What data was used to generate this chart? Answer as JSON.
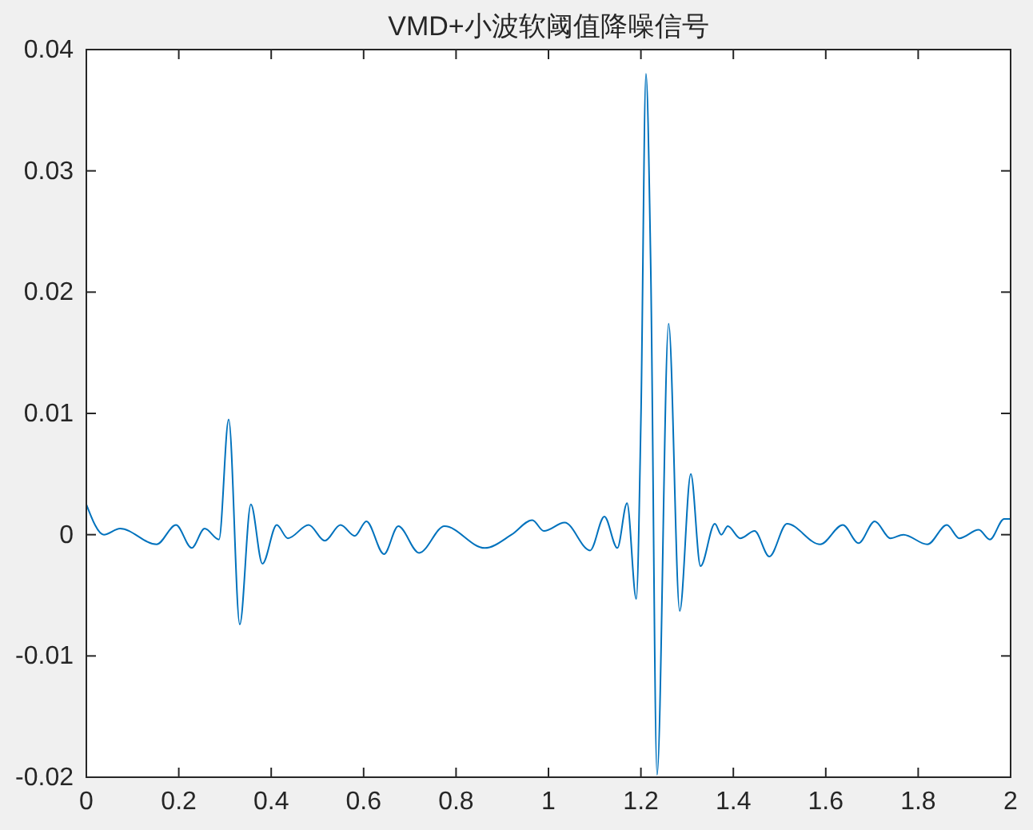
{
  "chart_data": {
    "type": "line",
    "title": "VMD+小波软阈值降噪信号",
    "x": [
      0,
      0.038,
      0.073,
      0.152,
      0.194,
      0.228,
      0.256,
      0.287,
      0.308,
      0.332,
      0.356,
      0.381,
      0.412,
      0.436,
      0.481,
      0.516,
      0.55,
      0.581,
      0.606,
      0.644,
      0.675,
      0.72,
      0.775,
      0.862,
      0.92,
      0.965,
      0.99,
      1.035,
      1.09,
      1.121,
      1.149,
      1.17,
      1.19,
      1.2,
      1.211,
      1.221,
      1.235,
      1.26,
      1.284,
      1.308,
      1.329,
      1.36,
      1.374,
      1.388,
      1.415,
      1.446,
      1.478,
      1.516,
      1.588,
      1.637,
      1.671,
      1.706,
      1.74,
      1.768,
      1.82,
      1.862,
      1.889,
      1.931,
      1.955,
      1.986,
      2
    ],
    "series": [
      {
        "color": "#0072bd",
        "values": [
          0.0025,
          0,
          0.0005,
          -0.0008,
          0.0008,
          -0.0011,
          0.0005,
          -0.0004,
          0.0095,
          -0.0074,
          0.0025,
          -0.0024,
          0.0008,
          -0.0003,
          0.0008,
          -0.0005,
          0.0008,
          -0.0001,
          0.0011,
          -0.0016,
          0.0007,
          -0.0015,
          0.0007,
          -0.0011,
          0,
          0.0012,
          0.0003,
          0.001,
          -0.0013,
          0.0015,
          -0.0011,
          0.0026,
          -0.0053,
          0.0095,
          0.038,
          0.0227,
          -0.0198,
          0.0174,
          -0.0063,
          0.005,
          -0.0026,
          0.0009,
          0,
          0.0007,
          -0.0003,
          0.0003,
          -0.0018,
          0.0009,
          -0.0008,
          0.0008,
          -0.0007,
          0.0011,
          -0.0003,
          0,
          -0.0008,
          0.0008,
          -0.0003,
          0.0004,
          -0.0004,
          0.0013,
          0.0013
        ]
      }
    ],
    "xlim": [
      0,
      2
    ],
    "xticks": [
      0,
      0.2,
      0.4,
      0.6,
      0.8,
      1,
      1.2,
      1.4,
      1.6,
      1.8,
      2
    ],
    "ylim": [
      -0.02,
      0.04
    ],
    "yticks": [
      -0.02,
      -0.01,
      0,
      0.01,
      0.02,
      0.03,
      0.04
    ],
    "grid": false,
    "marker": "none",
    "line_style": "solid"
  }
}
